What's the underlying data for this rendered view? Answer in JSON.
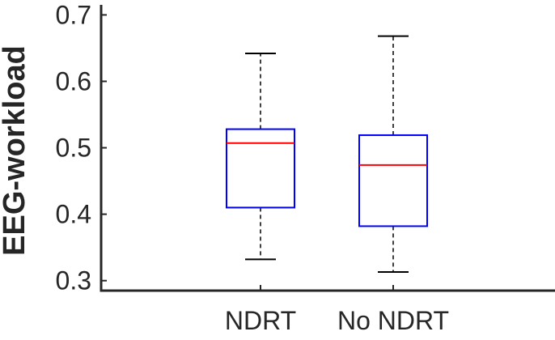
{
  "chart_data": {
    "type": "box",
    "title": "",
    "xlabel": "",
    "ylabel": "EEG-workload",
    "ylim": [
      0.285,
      0.72
    ],
    "yticks": [
      0.3,
      0.4,
      0.5,
      0.6,
      0.7
    ],
    "ytick_labels": [
      "0.3",
      "0.4",
      "0.5",
      "0.6",
      "0.7"
    ],
    "grid": false,
    "categories": [
      "NDRT",
      "No NDRT"
    ],
    "boxes": [
      {
        "category": "NDRT",
        "whisker_low": 0.332,
        "q1": 0.41,
        "median": 0.507,
        "q3": 0.528,
        "whisker_high": 0.642
      },
      {
        "category": "No NDRT",
        "whisker_low": 0.313,
        "q1": 0.382,
        "median": 0.474,
        "q3": 0.519,
        "whisker_high": 0.668
      }
    ],
    "colors": {
      "box": "#0000ff",
      "median": "#ff0000",
      "whisker": "#000000",
      "axis": "#262626"
    }
  }
}
